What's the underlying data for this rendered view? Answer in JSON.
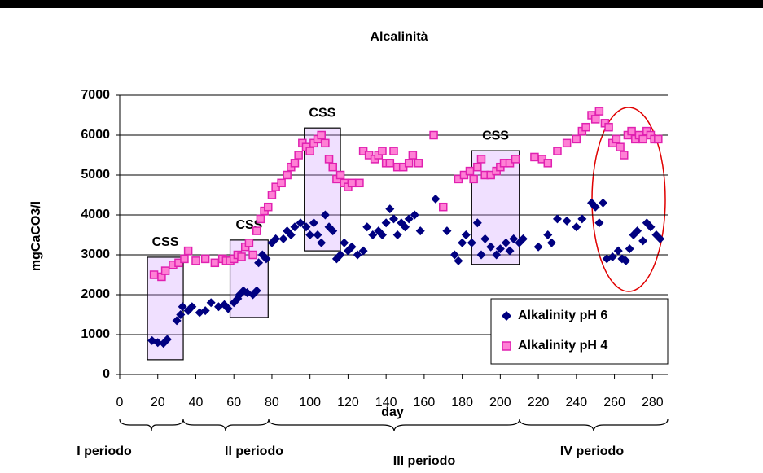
{
  "chart_data": {
    "type": "scatter",
    "title": "Alcalinità",
    "x_label": "day",
    "y_label": "mgCaCO3/l",
    "xlim": [
      0,
      288
    ],
    "xticks": [
      0,
      20,
      40,
      60,
      80,
      100,
      120,
      140,
      160,
      180,
      200,
      220,
      240,
      260,
      280
    ],
    "ylim": [
      0,
      7000
    ],
    "yticks": [
      0,
      1000,
      2000,
      3000,
      4000,
      5000,
      6000,
      7000
    ],
    "grid": true,
    "legend": "lower right",
    "series": [
      {
        "name": "Alkalinity pH 6",
        "color": "#000080",
        "marker": "diamond",
        "x": [
          17,
          20,
          23,
          25,
          30,
          32,
          33,
          36,
          38,
          42,
          45,
          48,
          52,
          55,
          57,
          60,
          62,
          63,
          65,
          67,
          70,
          72,
          73,
          75,
          77,
          80,
          82,
          86,
          88,
          90,
          92,
          95,
          98,
          100,
          102,
          104,
          106,
          108,
          110,
          112,
          114,
          116,
          118,
          120,
          122,
          125,
          128,
          130,
          133,
          136,
          138,
          140,
          142,
          144,
          146,
          148,
          150,
          152,
          155,
          158,
          166,
          172,
          176,
          178,
          180,
          182,
          185,
          188,
          190,
          192,
          195,
          198,
          200,
          203,
          205,
          207,
          210,
          212,
          220,
          225,
          227,
          230,
          235,
          240,
          243,
          248,
          250,
          252,
          254,
          256,
          259,
          262,
          264,
          266,
          268,
          270,
          272,
          275,
          277,
          279,
          282,
          284
        ],
        "values": [
          850,
          800,
          780,
          880,
          1350,
          1500,
          1700,
          1600,
          1700,
          1550,
          1600,
          1800,
          1700,
          1750,
          1650,
          1800,
          1900,
          2000,
          2100,
          2050,
          2000,
          2100,
          2800,
          3000,
          2900,
          3300,
          3400,
          3400,
          3600,
          3500,
          3700,
          3800,
          3700,
          3500,
          3800,
          3500,
          3300,
          4000,
          3700,
          3600,
          2900,
          3000,
          3300,
          3100,
          3200,
          3000,
          3100,
          3700,
          3500,
          3600,
          3500,
          3800,
          4150,
          3900,
          3500,
          3800,
          3700,
          3900,
          4000,
          3600,
          4400,
          3600,
          3000,
          2850,
          3300,
          3500,
          3300,
          3800,
          3000,
          3400,
          3200,
          3000,
          3150,
          3300,
          3100,
          3400,
          3300,
          3400,
          3200,
          3500,
          3300,
          3900,
          3850,
          3700,
          3900,
          4300,
          4200,
          3800,
          4300,
          2900,
          2950,
          3100,
          2900,
          2850,
          3150,
          3500,
          3600,
          3350,
          3800,
          3700,
          3500,
          3400
        ]
      },
      {
        "name": "Alkalinity pH 4",
        "color": "#ff80d5",
        "marker": "square",
        "x": [
          18,
          22,
          24,
          28,
          31,
          34,
          36,
          40,
          45,
          50,
          54,
          56,
          58,
          60,
          62,
          64,
          66,
          68,
          70,
          72,
          74,
          76,
          78,
          80,
          82,
          85,
          88,
          90,
          92,
          94,
          96,
          98,
          100,
          102,
          104,
          106,
          108,
          110,
          112,
          114,
          116,
          118,
          120,
          122,
          126,
          128,
          131,
          134,
          136,
          138,
          140,
          142,
          144,
          146,
          149,
          152,
          154,
          157,
          165,
          170,
          178,
          181,
          184,
          186,
          188,
          190,
          192,
          195,
          198,
          200,
          202,
          205,
          208,
          218,
          222,
          225,
          230,
          235,
          240,
          243,
          245,
          248,
          250,
          252,
          255,
          257,
          259,
          261,
          263,
          265,
          267,
          269,
          271,
          273,
          275,
          277,
          279,
          281,
          283
        ],
        "values": [
          2500,
          2450,
          2600,
          2750,
          2800,
          2900,
          3100,
          2850,
          2900,
          2800,
          2900,
          2850,
          2850,
          2900,
          3000,
          2950,
          3200,
          3300,
          3000,
          3600,
          3900,
          4100,
          4200,
          4500,
          4700,
          4800,
          5000,
          5200,
          5300,
          5500,
          5800,
          5700,
          5600,
          5800,
          5900,
          6000,
          5800,
          5400,
          5200,
          4900,
          5000,
          4800,
          4700,
          4800,
          4800,
          5600,
          5500,
          5400,
          5500,
          5600,
          5300,
          5300,
          5600,
          5200,
          5200,
          5300,
          5500,
          5300,
          6000,
          4200,
          4900,
          5000,
          5100,
          4900,
          5200,
          5400,
          5000,
          5000,
          5100,
          5200,
          5300,
          5300,
          5400,
          5450,
          5400,
          5300,
          5600,
          5800,
          5900,
          6100,
          6200,
          6500,
          6400,
          6600,
          6300,
          6200,
          5800,
          5900,
          5700,
          5500,
          6000,
          6100,
          5900,
          6000,
          5900,
          6100,
          6000,
          5900,
          5900
        ]
      }
    ],
    "regions": [
      {
        "label": "CSS",
        "x": [
          14.6,
          33.4
        ],
        "y": [
          370,
          2940
        ]
      },
      {
        "label": "CSS",
        "x": [
          58,
          78
        ],
        "y": [
          1430,
          3370
        ]
      },
      {
        "label": "CSS",
        "x": [
          97,
          116
        ],
        "y": [
          3100,
          6180
        ]
      },
      {
        "label": "CSS",
        "x": [
          185,
          210
        ],
        "y": [
          2760,
          5610
        ]
      }
    ],
    "periods": [
      "I periodo",
      "II periodo",
      "III periodo",
      "IV periodo"
    ]
  }
}
